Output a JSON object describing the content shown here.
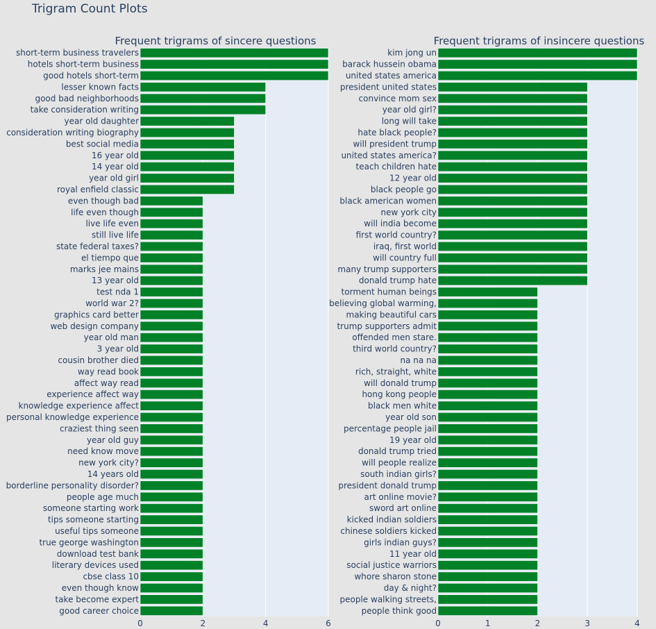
{
  "figure_title": "Trigram Count Plots",
  "bar_color": "#038129",
  "plot_bg": "#e5ecf6",
  "page_bg": "#e5e5e5",
  "chart_data": [
    {
      "type": "bar",
      "orientation": "horizontal",
      "title": "Frequent trigrams of sincere questions",
      "xlim": [
        0,
        6
      ],
      "xticks": [
        0,
        2,
        4,
        6
      ],
      "categories": [
        "short-term business travelers",
        "hotels short-term business",
        "good hotels short-term",
        "lesser known facts",
        "good bad neighborhoods",
        "take consideration writing",
        "year old daughter",
        "consideration writing biography",
        "best social media",
        "16 year old",
        "14 year old",
        "year old girl",
        "royal enfield classic",
        "even though bad",
        "life even though",
        "live life even",
        "still live life",
        "state federal taxes?",
        "el tiempo que",
        "marks jee mains",
        "13 year old",
        "test nda 1",
        "world war 2?",
        "graphics card better",
        "web design company",
        "year old man",
        "3 year old",
        "cousin brother died",
        "way read book",
        "affect way read",
        "experience affect way",
        "knowledge experience affect",
        "personal knowledge experience",
        "craziest thing seen",
        "year old guy",
        "need know move",
        "new york city?",
        "14 years old",
        "borderline personality disorder?",
        "people age much",
        "someone starting work",
        "tips someone starting",
        "useful tips someone",
        "true george washington",
        "download test bank",
        "literary devices used",
        "cbse class 10",
        "even though know",
        "take become expert",
        "good career choice"
      ],
      "values": [
        6,
        6,
        6,
        4,
        4,
        4,
        3,
        3,
        3,
        3,
        3,
        3,
        3,
        2,
        2,
        2,
        2,
        2,
        2,
        2,
        2,
        2,
        2,
        2,
        2,
        2,
        2,
        2,
        2,
        2,
        2,
        2,
        2,
        2,
        2,
        2,
        2,
        2,
        2,
        2,
        2,
        2,
        2,
        2,
        2,
        2,
        2,
        2,
        2,
        2
      ]
    },
    {
      "type": "bar",
      "orientation": "horizontal",
      "title": "Frequent trigrams of insincere questions",
      "xlim": [
        0,
        4
      ],
      "xticks": [
        0,
        1,
        2,
        3,
        4
      ],
      "categories": [
        "kim jong un",
        "barack hussein obama",
        "united states america",
        "president united states",
        "convince mom sex",
        "year old girl?",
        "long will take",
        "hate black people?",
        "will president trump",
        "united states america?",
        "teach children hate",
        "12 year old",
        "black people go",
        "black american women",
        "new york city",
        "will india become",
        "first world country?",
        "iraq, first world",
        "will country full",
        "many trump supporters",
        "donald trump hate",
        "torment human beings",
        "believing global warming,",
        "making beautiful cars",
        "trump supporters admit",
        "offended men stare.",
        "third world country?",
        "na na na",
        "rich, straight, white",
        "will donald trump",
        "hong kong people",
        "black men white",
        "year old son",
        "percentage people jail",
        "19 year old",
        "donald trump tried",
        "will people realize",
        "south indian girls?",
        "president donald trump",
        "art online movie?",
        "sword art online",
        "kicked indian soldiers",
        "chinese soldiers kicked",
        "girls indian guys?",
        "11 year old",
        "social justice warriors",
        "whore sharon stone",
        "day & night?",
        "people walking streets,",
        "people think good"
      ],
      "values": [
        4,
        4,
        4,
        3,
        3,
        3,
        3,
        3,
        3,
        3,
        3,
        3,
        3,
        3,
        3,
        3,
        3,
        3,
        3,
        3,
        3,
        2,
        2,
        2,
        2,
        2,
        2,
        2,
        2,
        2,
        2,
        2,
        2,
        2,
        2,
        2,
        2,
        2,
        2,
        2,
        2,
        2,
        2,
        2,
        2,
        2,
        2,
        2,
        2,
        2
      ]
    }
  ]
}
